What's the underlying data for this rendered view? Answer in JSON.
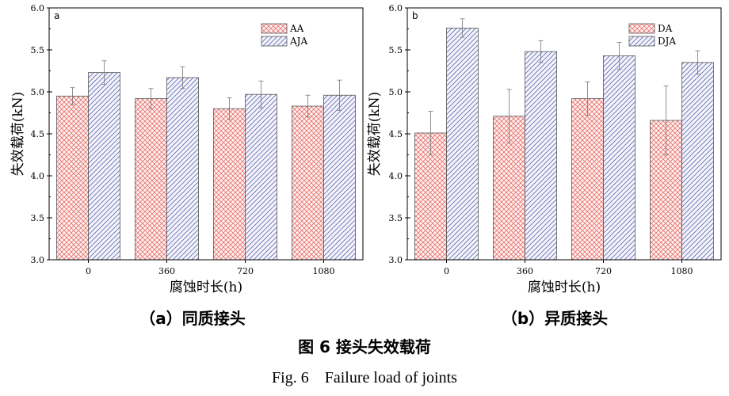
{
  "chart_data": [
    {
      "type": "bar",
      "panel_label": "a",
      "categories": [
        "0",
        "360",
        "720",
        "1080"
      ],
      "xlabel": "腐蚀时长(h)",
      "ylabel": "失效载荷(kN)",
      "ylim": [
        3.0,
        6.0
      ],
      "yticks": [
        "3.0",
        "3.5",
        "4.0",
        "4.5",
        "5.0",
        "5.5",
        "6.0"
      ],
      "legend_position": "top-right",
      "series": [
        {
          "name": "AA",
          "values": [
            4.95,
            4.92,
            4.8,
            4.83
          ],
          "errors": [
            0.1,
            0.12,
            0.13,
            0.13
          ],
          "color": "#e8706b"
        },
        {
          "name": "AJA",
          "values": [
            5.23,
            5.17,
            4.97,
            4.96
          ],
          "errors": [
            0.14,
            0.13,
            0.16,
            0.18
          ],
          "color": "#6a6fb4"
        }
      ]
    },
    {
      "type": "bar",
      "panel_label": "b",
      "categories": [
        "0",
        "360",
        "720",
        "1080"
      ],
      "xlabel": "腐蚀时长(h)",
      "ylabel": "失效载荷(kN)",
      "ylim": [
        3.0,
        6.0
      ],
      "yticks": [
        "3.0",
        "3.5",
        "4.0",
        "4.5",
        "5.0",
        "5.5",
        "6.0"
      ],
      "legend_position": "top-right",
      "series": [
        {
          "name": "DA",
          "values": [
            4.51,
            4.71,
            4.92,
            4.66
          ],
          "errors": [
            0.26,
            0.32,
            0.2,
            0.41
          ],
          "color": "#e8706b"
        },
        {
          "name": "DJA",
          "values": [
            5.76,
            5.48,
            5.43,
            5.35
          ],
          "errors": [
            0.11,
            0.13,
            0.16,
            0.14
          ],
          "color": "#6a6fb4"
        }
      ]
    }
  ],
  "captions": {
    "sub_a": "（a）同质接头",
    "sub_b": "（b）异质接头",
    "figure_cn": "图 6  接头失效载荷",
    "figure_en": "Fig. 6    Failure load of joints"
  }
}
